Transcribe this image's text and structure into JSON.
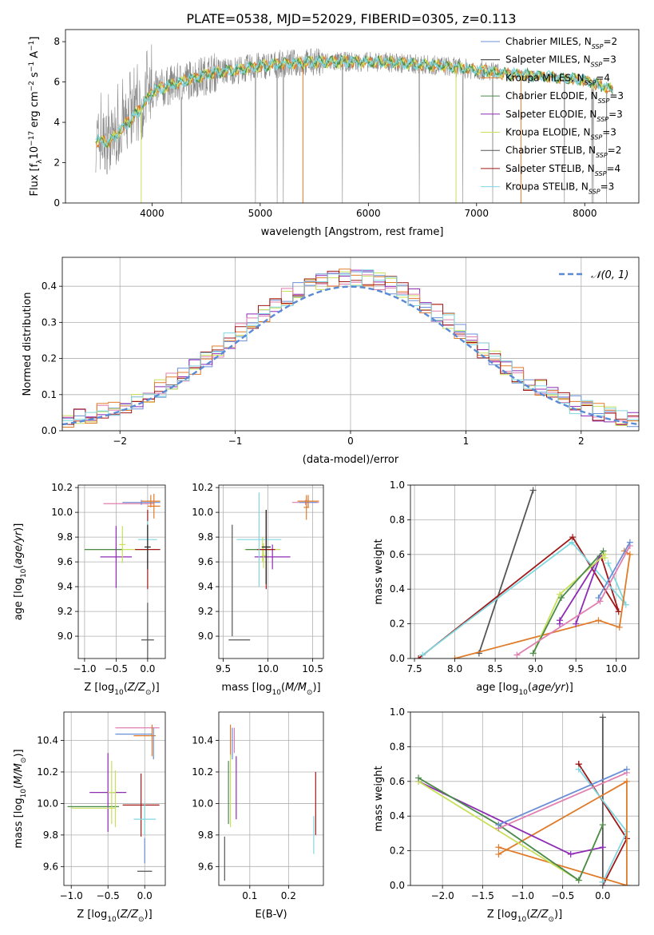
{
  "title": "PLATE=0538, MJD=52029, FIBERID=0305, z=0.113",
  "colors": {
    "chabrier_miles": "#6b8fd6",
    "salpeter_miles": "#222222",
    "kroupa_miles": "#e07b2a",
    "chabrier_elodie": "#4a8a4a",
    "salpeter_elodie": "#8e2bb5",
    "kroupa_elodie": "#c8e05a",
    "chabrier_stelib": "#555555",
    "salpeter_stelib": "#a01818",
    "kroupa_stelib": "#7fd8e0",
    "pink": "#e07fb0",
    "data_gray": "#888888",
    "gauss": "#5a8ad6"
  },
  "chart_data": [
    {
      "type": "line",
      "xlabel": "wavelength [Angstrom, rest frame]",
      "ylabel": "Flux [f",
      "ylabel_parts": [
        "Flux [f",
        "λ",
        "10",
        "−17",
        " erg cm",
        "−2",
        " s",
        "−1",
        " A",
        "−1",
        "]"
      ],
      "xlim": [
        3200,
        8500
      ],
      "ylim": [
        0,
        8.6
      ],
      "xticks": [
        4000,
        5000,
        6000,
        7000,
        8000
      ],
      "yticks": [
        0,
        2,
        4,
        6,
        8
      ],
      "x_range": [
        3480,
        8260
      ],
      "continuum_x": [
        3480,
        3600,
        3700,
        3800,
        3900,
        4000,
        4200,
        4400,
        4600,
        4800,
        5000,
        5200,
        5500,
        5800,
        6100,
        6400,
        6700,
        7000,
        7300,
        7600,
        7800,
        8000,
        8260
      ],
      "continuum_y": [
        3.1,
        3.0,
        3.6,
        4.1,
        4.7,
        5.5,
        5.9,
        6.2,
        6.5,
        6.6,
        6.8,
        6.9,
        7.0,
        7.0,
        7.0,
        6.9,
        6.8,
        6.6,
        6.4,
        6.3,
        6.2,
        6.1,
        5.6
      ],
      "legend": [
        {
          "label": "Chabrier MILES, N",
          "sub": "SSP",
          "tail": "=2",
          "color_key": "chabrier_miles"
        },
        {
          "label": "Salpeter MILES, N",
          "sub": "SSP",
          "tail": "=3",
          "color_key": "salpeter_miles"
        },
        {
          "label": "Kroupa MILES, N",
          "sub": "SSP",
          "tail": "=4",
          "color_key": "kroupa_miles"
        },
        {
          "label": "Chabrier ELODIE, N",
          "sub": "SSP",
          "tail": "=3",
          "color_key": "chabrier_elodie"
        },
        {
          "label": "Salpeter ELODIE, N",
          "sub": "SSP",
          "tail": "=3",
          "color_key": "salpeter_elodie"
        },
        {
          "label": "Kroupa ELODIE, N",
          "sub": "SSP",
          "tail": "=3",
          "color_key": "kroupa_elodie"
        },
        {
          "label": "Chabrier STELIB, N",
          "sub": "SSP",
          "tail": "=2",
          "color_key": "chabrier_stelib"
        },
        {
          "label": "Salpeter STELIB, N",
          "sub": "SSP",
          "tail": "=4",
          "color_key": "salpeter_stelib"
        },
        {
          "label": "Kroupa STELIB, N",
          "sub": "SSP",
          "tail": "=3",
          "color_key": "kroupa_stelib"
        }
      ]
    },
    {
      "type": "line",
      "xlabel": "(data-model)/error",
      "ylabel": "Normed distribution",
      "xlim": [
        -2.5,
        2.5
      ],
      "ylim": [
        0,
        0.48
      ],
      "xticks": [
        -2,
        -1,
        0,
        1,
        2
      ],
      "yticks": [
        0.0,
        0.1,
        0.2,
        0.3,
        0.4
      ],
      "grid": true,
      "legend": "top-right",
      "gauss_label": "𝒩(0, 1)",
      "bin_width": 0.1,
      "bins_start": -2.5,
      "hist_colors": [
        "chabrier_miles",
        "salpeter_elodie",
        "kroupa_elodie",
        "pink",
        "kroupa_miles",
        "salpeter_stelib",
        "kroupa_stelib"
      ]
    },
    {
      "type": "scatter",
      "xlabel": "Z [log",
      "xlabel_parts": [
        "Z [log",
        "10",
        "(",
        "Z/Z",
        "⊙",
        ")]"
      ],
      "ylabel_parts": [
        "age  [log",
        "10",
        "(",
        "age/yr",
        ")]"
      ],
      "xlim": [
        -1.1,
        0.28
      ],
      "ylim": [
        8.82,
        10.22
      ],
      "xticks": [
        -1.0,
        -0.5,
        0.0
      ],
      "yticks": [
        9.0,
        9.2,
        9.4,
        9.6,
        9.8,
        10.0,
        10.2
      ],
      "grid": true,
      "points": [
        {
          "x": -0.3,
          "y": 10.07,
          "dx": 0.4,
          "dy": 0.0,
          "c": "pink"
        },
        {
          "x": -0.1,
          "y": 10.08,
          "dx": 0.3,
          "dy": 0.02,
          "c": "chabrier_miles"
        },
        {
          "x": 0.05,
          "y": 10.09,
          "dx": 0.15,
          "dy": 0.05,
          "c": "kroupa_miles"
        },
        {
          "x": 0.1,
          "y": 10.05,
          "dx": 0.1,
          "dy": 0.1,
          "c": "kroupa_miles"
        },
        {
          "x": -0.5,
          "y": 9.7,
          "dx": 0.5,
          "dy": 0.02,
          "c": "kroupa_elodie"
        },
        {
          "x": -0.7,
          "y": 9.7,
          "dx": 0.3,
          "dy": 0.0,
          "c": "chabrier_elodie"
        },
        {
          "x": -0.5,
          "y": 9.64,
          "dx": 0.25,
          "dy": 0.25,
          "c": "salpeter_elodie"
        },
        {
          "x": -0.4,
          "y": 9.74,
          "dx": 0.05,
          "dy": 0.15,
          "c": "kroupa_elodie"
        },
        {
          "x": 0.0,
          "y": 9.7,
          "dx": 0.2,
          "dy": 0.32,
          "c": "salpeter_stelib"
        },
        {
          "x": 0.0,
          "y": 9.78,
          "dx": 0.15,
          "dy": 0.15,
          "c": "kroupa_stelib"
        },
        {
          "x": 0.0,
          "y": 9.72,
          "dx": 0.05,
          "dy": 0.18,
          "c": "salpeter_miles"
        },
        {
          "x": 0.0,
          "y": 8.97,
          "dx": 0.1,
          "dy": 0.3,
          "c": "chabrier_stelib"
        }
      ]
    },
    {
      "type": "scatter",
      "xlabel_parts": [
        "mass [log",
        "10",
        "(",
        "M/M",
        "⊙",
        ")]"
      ],
      "xlim": [
        9.45,
        10.62
      ],
      "ylim": [
        8.82,
        10.22
      ],
      "xticks": [
        9.5,
        10.0,
        10.5
      ],
      "yticks": [
        9.0,
        9.2,
        9.4,
        9.6,
        9.8,
        10.0,
        10.2
      ],
      "grid": true,
      "points": [
        {
          "x": 10.42,
          "y": 10.08,
          "dx": 0.15,
          "dy": 0.02,
          "c": "pink"
        },
        {
          "x": 10.45,
          "y": 10.08,
          "dx": 0.1,
          "dy": 0.03,
          "c": "chabrier_miles"
        },
        {
          "x": 10.45,
          "y": 10.09,
          "dx": 0.12,
          "dy": 0.05,
          "c": "kroupa_miles"
        },
        {
          "x": 10.43,
          "y": 10.04,
          "dx": 0.03,
          "dy": 0.1,
          "c": "kroupa_miles"
        },
        {
          "x": 9.94,
          "y": 9.7,
          "dx": 0.2,
          "dy": 0.1,
          "c": "kroupa_elodie"
        },
        {
          "x": 9.9,
          "y": 9.7,
          "dx": 0.15,
          "dy": 0.0,
          "c": "chabrier_elodie"
        },
        {
          "x": 10.05,
          "y": 9.64,
          "dx": 0.2,
          "dy": 0.1,
          "c": "salpeter_elodie"
        },
        {
          "x": 9.95,
          "y": 9.65,
          "dx": 0.02,
          "dy": 0.1,
          "c": "kroupa_elodie"
        },
        {
          "x": 9.98,
          "y": 9.7,
          "dx": 0.1,
          "dy": 0.32,
          "c": "salpeter_stelib"
        },
        {
          "x": 9.9,
          "y": 9.78,
          "dx": 0.25,
          "dy": 0.38,
          "c": "kroupa_stelib"
        },
        {
          "x": 9.98,
          "y": 9.72,
          "dx": 0.05,
          "dy": 0.3,
          "c": "salpeter_miles"
        },
        {
          "x": 9.68,
          "y": 8.97,
          "dx": 0.12,
          "dy": 0.0,
          "c": "chabrier_stelib"
        },
        {
          "x": 9.6,
          "y": 9.45,
          "dx": 0.0,
          "dy": 0.45,
          "c": "chabrier_stelib"
        }
      ]
    },
    {
      "type": "line",
      "xlabel_parts": [
        "age  [log",
        "10",
        "(",
        "age/yr",
        ")]"
      ],
      "ylabel": "mass weight",
      "xlim": [
        7.45,
        10.28
      ],
      "ylim": [
        0,
        1.0
      ],
      "xticks": [
        7.5,
        8.0,
        8.5,
        9.0,
        9.5,
        10.0
      ],
      "yticks": [
        0.0,
        0.2,
        0.4,
        0.6,
        0.8,
        1.0
      ],
      "grid": true,
      "series": [
        {
          "c": "chabrier_stelib",
          "x": [
            8.3,
            8.97
          ],
          "y": [
            0.03,
            0.97
          ]
        },
        {
          "c": "salpeter_stelib",
          "x": [
            7.55,
            9.46,
            10.03,
            9.82
          ],
          "y": [
            0.0,
            0.7,
            0.27,
            0.58
          ]
        },
        {
          "c": "kroupa_stelib",
          "x": [
            7.6,
            9.45,
            10.12,
            9.9
          ],
          "y": [
            0.02,
            0.67,
            0.31,
            0.55
          ]
        },
        {
          "c": "kroupa_miles",
          "x": [
            8.0,
            9.78,
            10.04,
            10.17,
            10.1
          ],
          "y": [
            0.0,
            0.22,
            0.18,
            0.6,
            0.62
          ]
        },
        {
          "c": "salpeter_elodie",
          "x": [
            9.3,
            9.3,
            9.8,
            9.5
          ],
          "y": [
            0.2,
            0.22,
            0.59,
            0.2
          ]
        },
        {
          "c": "kroupa_elodie",
          "x": [
            8.97,
            9.3,
            9.86,
            9.86
          ],
          "y": [
            0.03,
            0.37,
            0.6,
            0.58
          ]
        },
        {
          "c": "chabrier_elodie",
          "x": [
            8.97,
            9.32,
            9.84
          ],
          "y": [
            0.03,
            0.35,
            0.62
          ]
        },
        {
          "c": "pink",
          "x": [
            8.77,
            9.8,
            10.17
          ],
          "y": [
            0.02,
            0.33,
            0.65
          ]
        },
        {
          "c": "chabrier_miles",
          "x": [
            9.78,
            10.17
          ],
          "y": [
            0.35,
            0.67
          ]
        }
      ]
    },
    {
      "type": "scatter",
      "xlabel_parts": [
        "Z [log",
        "10",
        "(",
        "Z/Z",
        "⊙",
        ")]"
      ],
      "ylabel_parts": [
        "mass [log",
        "10",
        "(",
        "M/M",
        "⊙",
        ")]"
      ],
      "xlim": [
        -1.1,
        0.28
      ],
      "ylim": [
        9.48,
        10.58
      ],
      "xticks": [
        -1.0,
        -0.5,
        0.0
      ],
      "yticks": [
        9.6,
        9.8,
        10.0,
        10.2,
        10.4
      ],
      "grid": true,
      "points": [
        {
          "x": -0.1,
          "y": 10.48,
          "dx": 0.3,
          "dy": 0.0,
          "c": "pink"
        },
        {
          "x": -0.15,
          "y": 10.44,
          "dx": 0.25,
          "dy": 0.0,
          "c": "chabrier_miles"
        },
        {
          "x": 0.0,
          "y": 10.43,
          "dx": 0.15,
          "dy": 0.0,
          "c": "kroupa_miles"
        },
        {
          "x": 0.1,
          "y": 10.4,
          "dx": 0.0,
          "dy": 0.1,
          "c": "kroupa_miles"
        },
        {
          "x": 0.12,
          "y": 10.38,
          "dx": 0.0,
          "dy": 0.1,
          "c": "chabrier_miles"
        },
        {
          "x": -0.5,
          "y": 10.07,
          "dx": 0.25,
          "dy": 0.25,
          "c": "salpeter_elodie"
        },
        {
          "x": -0.7,
          "y": 9.98,
          "dx": 0.35,
          "dy": 0.0,
          "c": "chabrier_elodie"
        },
        {
          "x": -0.7,
          "y": 9.97,
          "dx": 0.3,
          "dy": 0.0,
          "c": "kroupa_elodie"
        },
        {
          "x": -0.45,
          "y": 10.07,
          "dx": 0.05,
          "dy": 0.2,
          "c": "kroupa_elodie"
        },
        {
          "x": -0.4,
          "y": 10.03,
          "dx": 0.0,
          "dy": 0.18,
          "c": "kroupa_elodie"
        },
        {
          "x": -0.05,
          "y": 9.99,
          "dx": 0.25,
          "dy": 0.2,
          "c": "salpeter_stelib"
        },
        {
          "x": 0.0,
          "y": 9.9,
          "dx": 0.15,
          "dy": 0.1,
          "c": "kroupa_stelib"
        },
        {
          "x": 0.0,
          "y": 9.57,
          "dx": 0.1,
          "dy": 0.0,
          "c": "chabrier_stelib"
        },
        {
          "x": 0.0,
          "y": 9.7,
          "dx": 0.0,
          "dy": 0.08,
          "c": "chabrier_miles"
        }
      ]
    },
    {
      "type": "scatter",
      "xlabel": "E(B-V)",
      "xlim": [
        0.02,
        0.29
      ],
      "ylim": [
        9.48,
        10.58
      ],
      "xticks": [
        0.1,
        0.2
      ],
      "yticks": [
        9.6,
        9.8,
        10.0,
        10.2,
        10.4
      ],
      "grid": true,
      "points": [
        {
          "x": 0.05,
          "y": 10.4,
          "dx": 0.0,
          "dy": 0.1,
          "c": "kroupa_miles"
        },
        {
          "x": 0.055,
          "y": 10.38,
          "dx": 0.0,
          "dy": 0.1,
          "c": "chabrier_miles"
        },
        {
          "x": 0.06,
          "y": 10.4,
          "dx": 0.0,
          "dy": 0.08,
          "c": "pink"
        },
        {
          "x": 0.05,
          "y": 10.08,
          "dx": 0.0,
          "dy": 0.23,
          "c": "kroupa_elodie"
        },
        {
          "x": 0.045,
          "y": 10.07,
          "dx": 0.0,
          "dy": 0.2,
          "c": "chabrier_elodie"
        },
        {
          "x": 0.065,
          "y": 10.1,
          "dx": 0.0,
          "dy": 0.2,
          "c": "salpeter_elodie"
        },
        {
          "x": 0.035,
          "y": 9.65,
          "dx": 0.0,
          "dy": 0.14,
          "c": "chabrier_stelib"
        },
        {
          "x": 0.27,
          "y": 10.0,
          "dx": 0.0,
          "dy": 0.2,
          "c": "salpeter_stelib"
        },
        {
          "x": 0.265,
          "y": 9.8,
          "dx": 0.0,
          "dy": 0.12,
          "c": "kroupa_stelib"
        }
      ]
    },
    {
      "type": "line",
      "xlabel_parts": [
        "Z [log",
        "10",
        "(",
        "Z/Z",
        "⊙",
        ")]"
      ],
      "ylabel": "mass weight",
      "xlim": [
        -2.4,
        0.45
      ],
      "ylim": [
        0,
        1.0
      ],
      "xticks": [
        -2.0,
        -1.5,
        -1.0,
        -0.5,
        0.0
      ],
      "yticks": [
        0.0,
        0.2,
        0.4,
        0.6,
        0.8,
        1.0
      ],
      "grid": true,
      "series": [
        {
          "c": "chabrier_stelib",
          "x": [
            0.0,
            0.0
          ],
          "y": [
            0.02,
            0.97
          ]
        },
        {
          "c": "salpeter_stelib",
          "x": [
            0.0,
            0.3,
            -0.3,
            -0.3
          ],
          "y": [
            0.0,
            0.27,
            0.7,
            0.7
          ]
        },
        {
          "c": "kroupa_stelib",
          "x": [
            0.0,
            0.3,
            -0.3
          ],
          "y": [
            0.02,
            0.31,
            0.67
          ]
        },
        {
          "c": "kroupa_miles",
          "x": [
            -1.3,
            0.3,
            0.3,
            -1.3
          ],
          "y": [
            0.18,
            0.6,
            0.0,
            0.22
          ]
        },
        {
          "c": "salpeter_elodie",
          "x": [
            -2.3,
            -0.4,
            0.0
          ],
          "y": [
            0.6,
            0.18,
            0.22
          ]
        },
        {
          "c": "kroupa_elodie",
          "x": [
            -2.3,
            -0.3,
            0.0
          ],
          "y": [
            0.6,
            0.03,
            0.35
          ]
        },
        {
          "c": "chabrier_elodie",
          "x": [
            -2.3,
            -1.3,
            -0.3,
            0.0
          ],
          "y": [
            0.62,
            0.35,
            0.03,
            0.35
          ]
        },
        {
          "c": "pink",
          "x": [
            -1.3,
            0.3
          ],
          "y": [
            0.33,
            0.65
          ]
        },
        {
          "c": "chabrier_miles",
          "x": [
            -1.3,
            0.3
          ],
          "y": [
            0.35,
            0.67
          ]
        }
      ]
    }
  ]
}
